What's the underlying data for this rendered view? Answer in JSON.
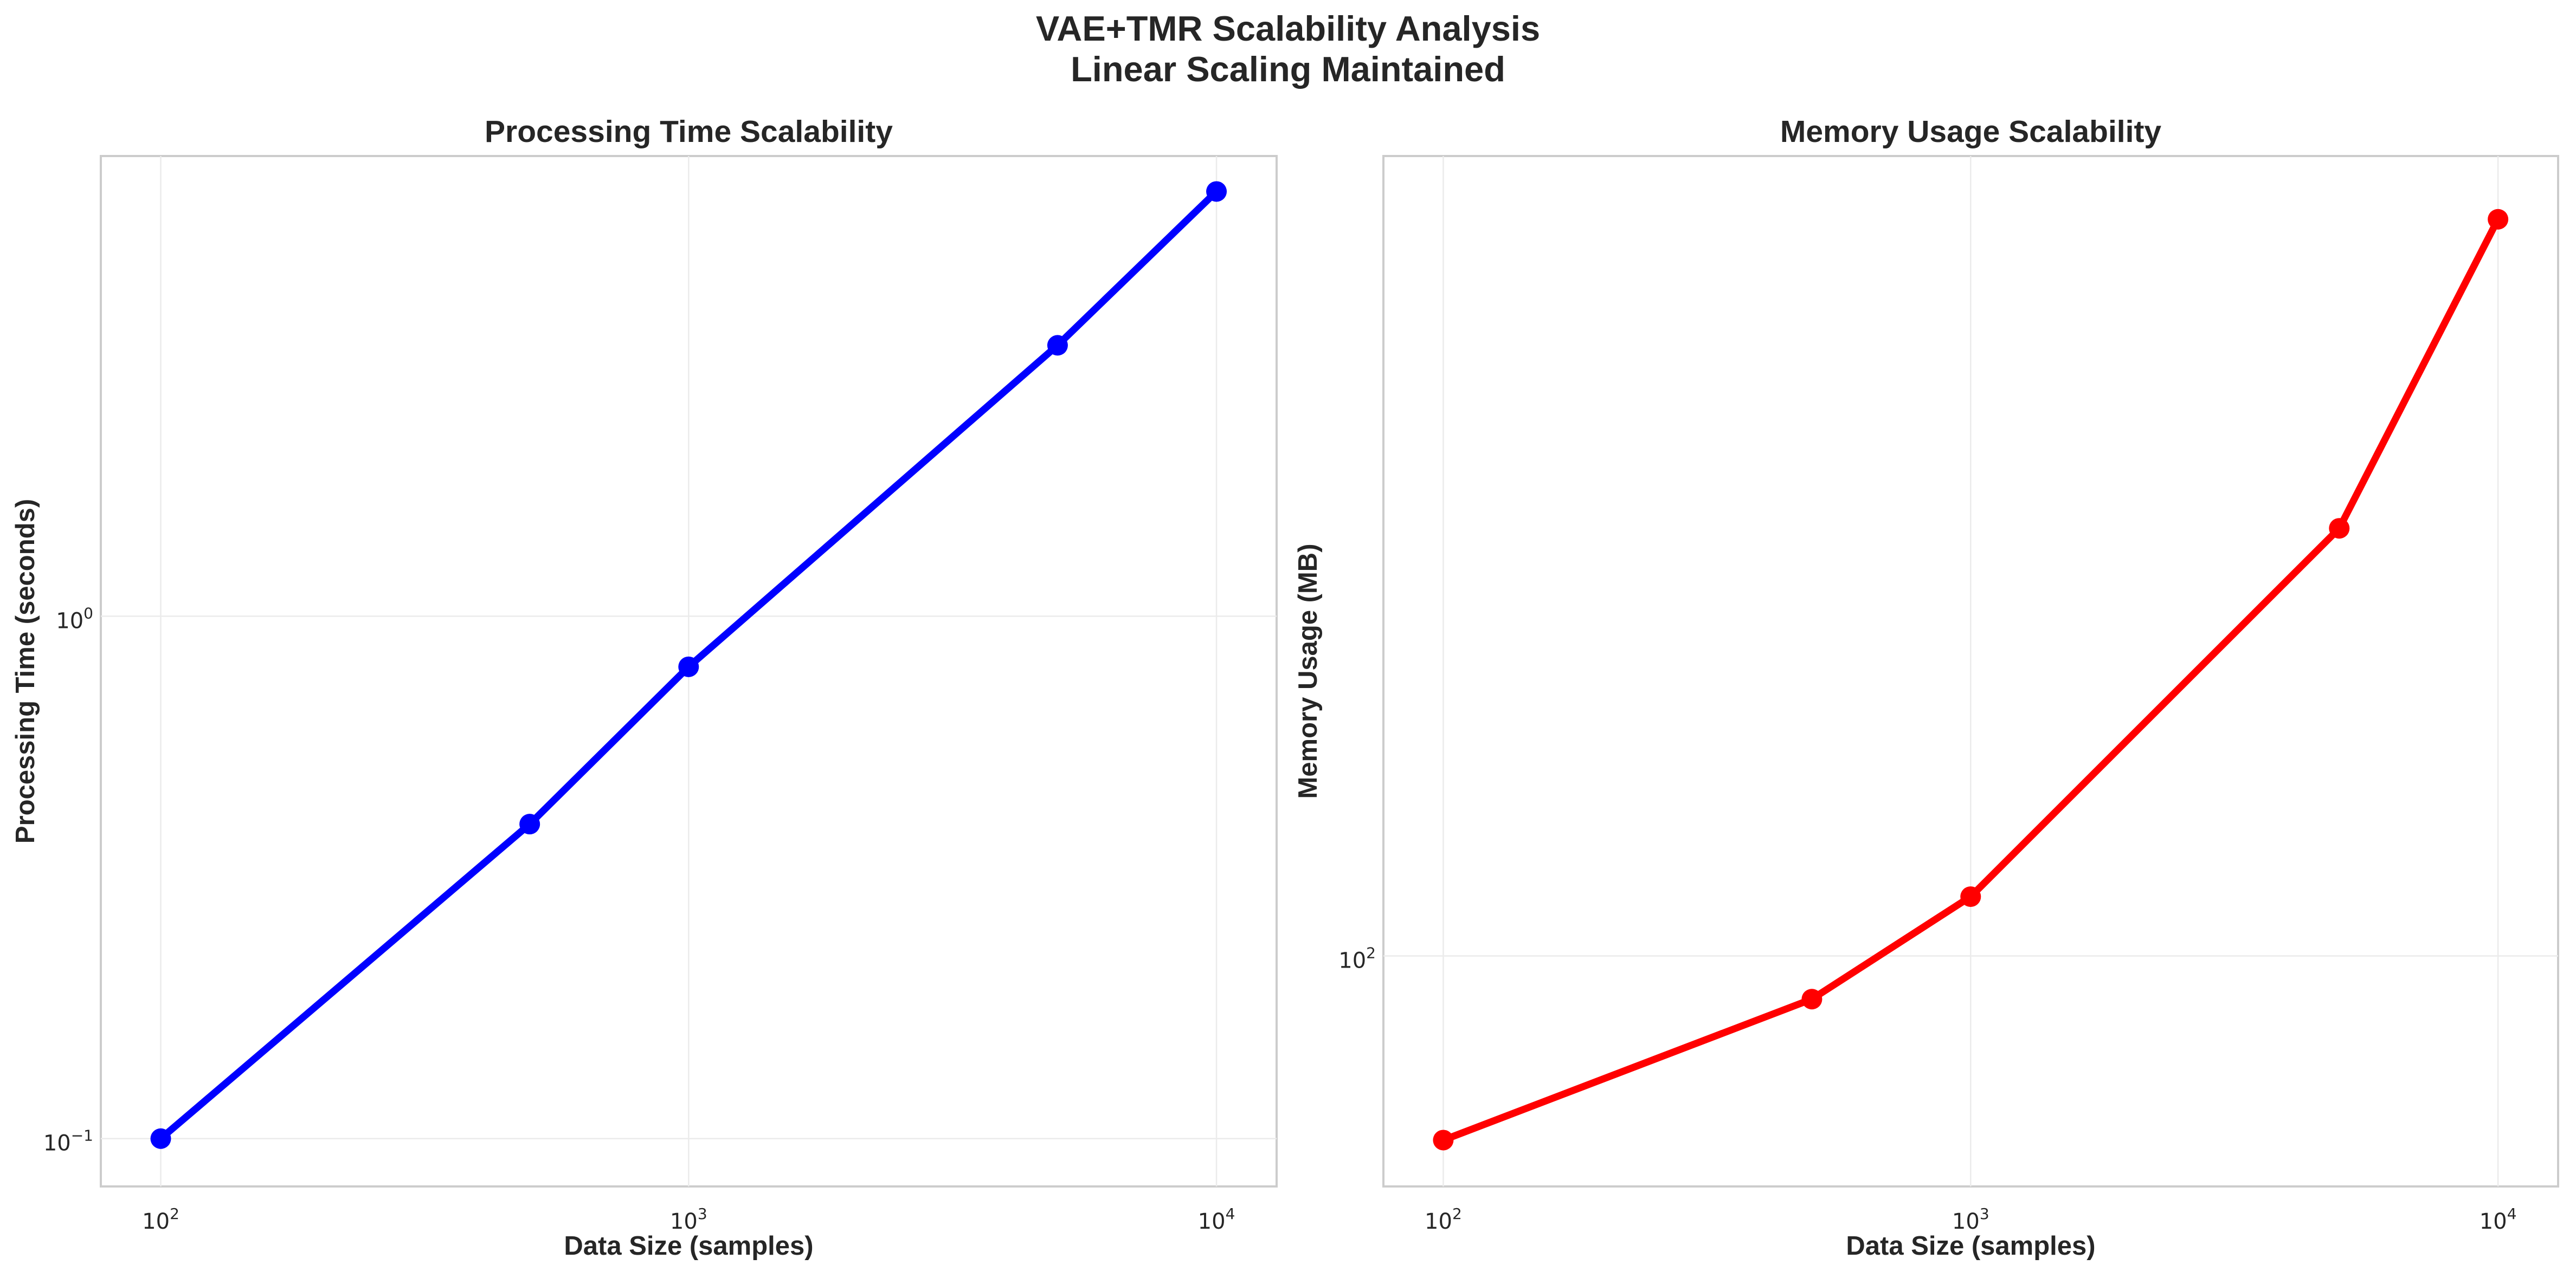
{
  "figure": {
    "title_line1": "VAE+TMR Scalability Analysis",
    "title_line2": "Linear Scaling Maintained"
  },
  "chart_data": [
    {
      "type": "line",
      "title": "Processing Time Scalability",
      "xlabel": "Data Size (samples)",
      "ylabel": "Processing Time (seconds)",
      "xscale": "log",
      "yscale": "log",
      "xlim": [
        77,
        13000
      ],
      "ylim": [
        0.081,
        7.6
      ],
      "x_ticks": [
        {
          "base": "10",
          "exp": "2",
          "value": 100
        },
        {
          "base": "10",
          "exp": "3",
          "value": 1000
        },
        {
          "base": "10",
          "exp": "4",
          "value": 10000
        }
      ],
      "y_ticks": [
        {
          "base": "10",
          "exp": "−1",
          "value": 0.1
        },
        {
          "base": "10",
          "exp": "0",
          "value": 1
        }
      ],
      "grid": true,
      "series": [
        {
          "x": [
            100,
            500,
            1000,
            5000,
            10000
          ],
          "y": [
            0.1,
            0.4,
            0.8,
            3.3,
            6.5
          ],
          "color": "#0000ff",
          "marker": "circle"
        }
      ]
    },
    {
      "type": "line",
      "title": "Memory Usage Scalability",
      "xlabel": "Data Size (samples)",
      "ylabel": "Memory Usage (MB)",
      "xscale": "log",
      "yscale": "log",
      "xlim": [
        77,
        13000
      ],
      "ylim": [
        42,
        2030
      ],
      "x_ticks": [
        {
          "base": "10",
          "exp": "2",
          "value": 100
        },
        {
          "base": "10",
          "exp": "3",
          "value": 1000
        },
        {
          "base": "10",
          "exp": "4",
          "value": 10000
        }
      ],
      "y_ticks": [
        {
          "base": "10",
          "exp": "2",
          "value": 100
        }
      ],
      "grid": true,
      "series": [
        {
          "x": [
            100,
            500,
            1000,
            5000,
            10000
          ],
          "y": [
            50,
            85,
            125,
            500,
            1600
          ],
          "color": "#ff0000",
          "marker": "circle"
        }
      ]
    }
  ]
}
